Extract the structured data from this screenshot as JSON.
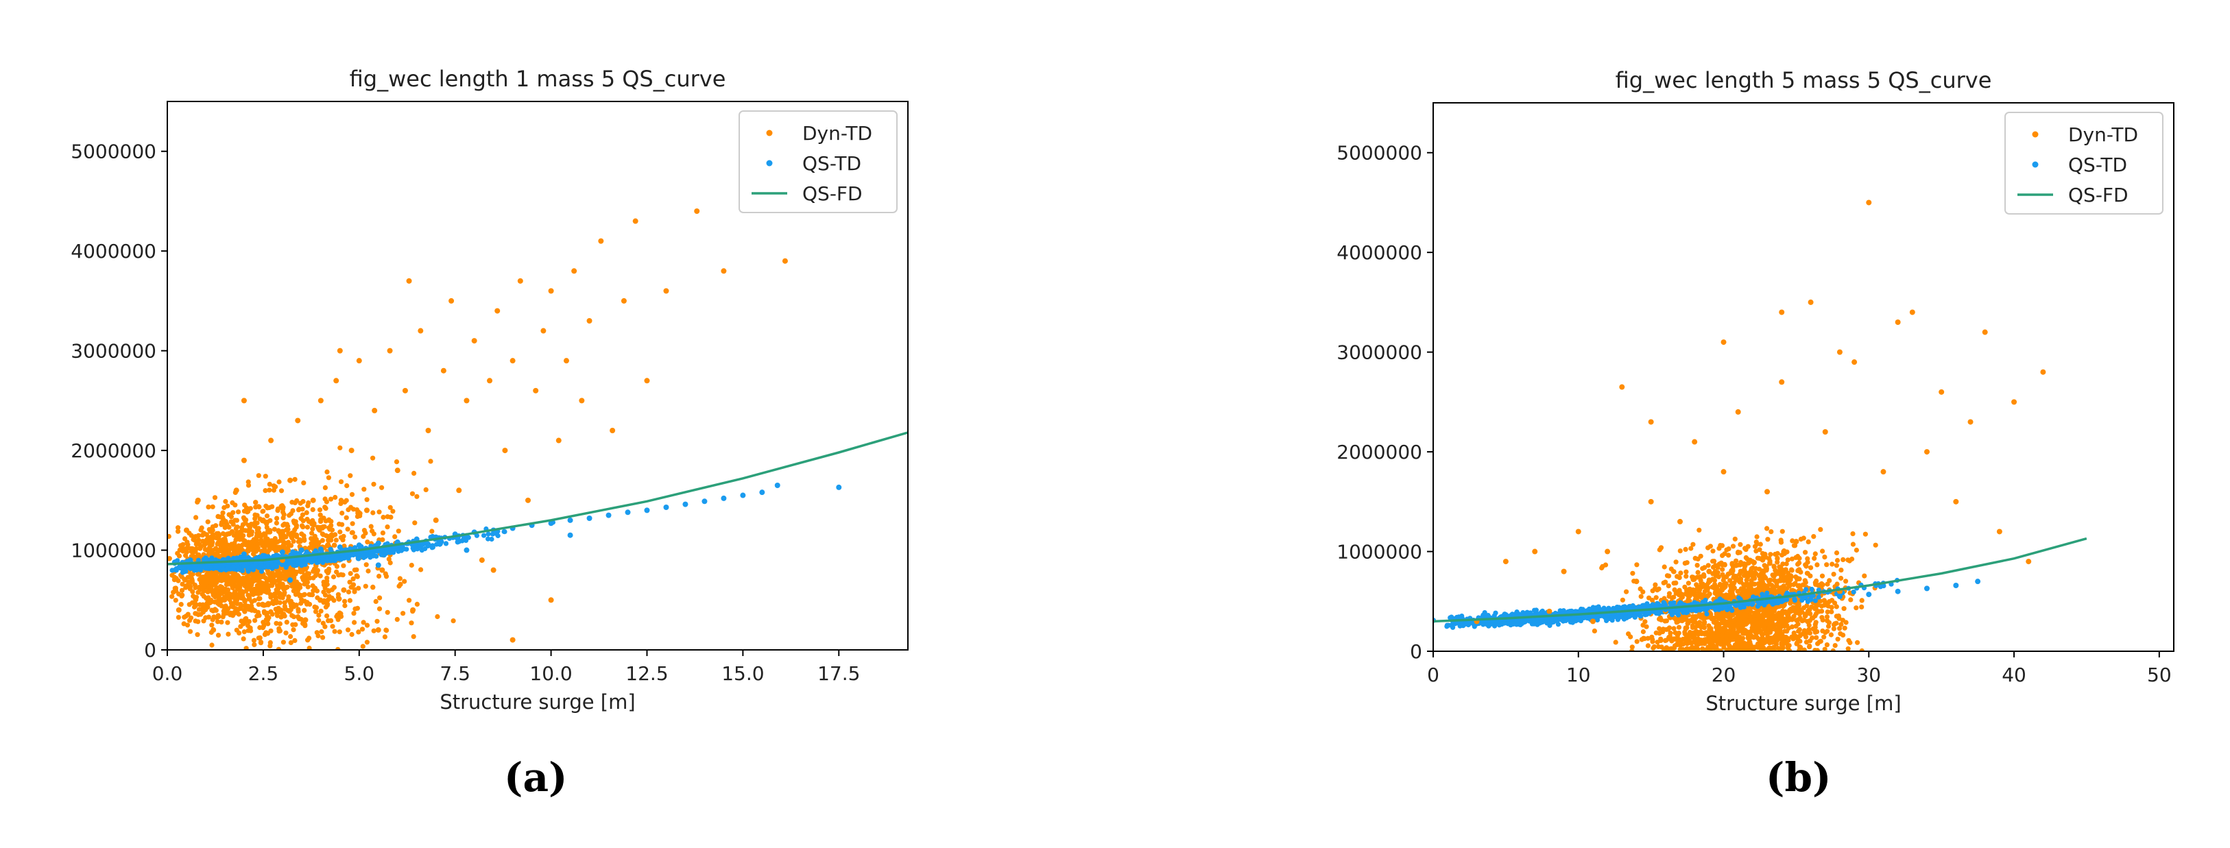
{
  "captions": [
    "(a)",
    "(b)"
  ],
  "chart_data": [
    {
      "type": "scatter",
      "title": "fig_wec length 1 mass 5 QS_curve",
      "xlabel": "Structure surge [m]",
      "ylabel": "",
      "xlim": [
        0,
        19.3
      ],
      "ylim": [
        0,
        5500000
      ],
      "xticks": [
        0.0,
        2.5,
        5.0,
        7.5,
        10.0,
        12.5,
        15.0,
        17.5
      ],
      "xtick_labels": [
        "0.0",
        "2.5",
        "5.0",
        "7.5",
        "10.0",
        "12.5",
        "15.0",
        "17.5"
      ],
      "yticks": [
        0,
        1000000,
        2000000,
        3000000,
        4000000,
        5000000
      ],
      "ytick_labels": [
        "0",
        "1000000",
        "2000000",
        "3000000",
        "4000000",
        "5000000"
      ],
      "grid": false,
      "legend_position": "top-right",
      "series": [
        {
          "name": "Dyn-TD",
          "kind": "scatter",
          "color": "#ff8c00",
          "points": [
            [
              0.3,
              400000
            ],
            [
              0.5,
              1200000
            ],
            [
              0.8,
              1500000
            ],
            [
              1.0,
              700000
            ],
            [
              1.2,
              200000
            ],
            [
              1.5,
              1100000
            ],
            [
              1.8,
              1600000
            ],
            [
              2.0,
              1900000
            ],
            [
              2.2,
              400000
            ],
            [
              2.5,
              1300000
            ],
            [
              2.7,
              2100000
            ],
            [
              3.0,
              900000
            ],
            [
              3.2,
              1700000
            ],
            [
              3.4,
              2300000
            ],
            [
              3.6,
              300000
            ],
            [
              3.8,
              1500000
            ],
            [
              4.0,
              2500000
            ],
            [
              4.2,
              1100000
            ],
            [
              4.4,
              2700000
            ],
            [
              4.6,
              600000
            ],
            [
              4.8,
              2000000
            ],
            [
              5.0,
              2900000
            ],
            [
              5.2,
              1400000
            ],
            [
              5.4,
              2400000
            ],
            [
              5.6,
              800000
            ],
            [
              5.8,
              3000000
            ],
            [
              6.0,
              1800000
            ],
            [
              6.2,
              2600000
            ],
            [
              6.4,
              400000
            ],
            [
              6.6,
              3200000
            ],
            [
              6.8,
              2200000
            ],
            [
              7.0,
              1300000
            ],
            [
              7.2,
              2800000
            ],
            [
              7.4,
              3500000
            ],
            [
              7.6,
              1600000
            ],
            [
              7.8,
              2500000
            ],
            [
              8.0,
              3100000
            ],
            [
              8.2,
              900000
            ],
            [
              8.4,
              2700000
            ],
            [
              8.6,
              3400000
            ],
            [
              8.8,
              2000000
            ],
            [
              9.0,
              2900000
            ],
            [
              9.2,
              3700000
            ],
            [
              9.4,
              1500000
            ],
            [
              9.6,
              2600000
            ],
            [
              9.8,
              3200000
            ],
            [
              10.0,
              3600000
            ],
            [
              10.2,
              2100000
            ],
            [
              10.4,
              2900000
            ],
            [
              10.6,
              3800000
            ],
            [
              10.8,
              2500000
            ],
            [
              11.0,
              3300000
            ],
            [
              11.3,
              4100000
            ],
            [
              11.6,
              2200000
            ],
            [
              11.9,
              3500000
            ],
            [
              12.2,
              4300000
            ],
            [
              12.5,
              2700000
            ],
            [
              13.0,
              3600000
            ],
            [
              13.8,
              4400000
            ],
            [
              14.5,
              3800000
            ],
            [
              16.1,
              3900000
            ],
            [
              4.5,
              3000000
            ],
            [
              6.3,
              3700000
            ],
            [
              2.0,
              2500000
            ],
            [
              5.5,
              200000
            ],
            [
              9.0,
              100000
            ],
            [
              10.0,
              500000
            ],
            [
              8.5,
              800000
            ]
          ]
        },
        {
          "name": "QS-TD",
          "kind": "scatter",
          "color": "#1a9bef",
          "points": [
            [
              0.2,
              880000
            ],
            [
              0.6,
              900000
            ],
            [
              1.0,
              920000
            ],
            [
              1.5,
              900000
            ],
            [
              2.0,
              960000
            ],
            [
              2.5,
              940000
            ],
            [
              3.0,
              980000
            ],
            [
              3.5,
              1000000
            ],
            [
              4.0,
              1010000
            ],
            [
              4.5,
              1030000
            ],
            [
              5.0,
              1050000
            ],
            [
              5.5,
              1070000
            ],
            [
              6.0,
              1080000
            ],
            [
              6.5,
              1110000
            ],
            [
              7.0,
              1130000
            ],
            [
              7.5,
              1160000
            ],
            [
              8.0,
              1180000
            ],
            [
              8.5,
              1200000
            ],
            [
              9.0,
              1220000
            ],
            [
              9.5,
              1250000
            ],
            [
              10.0,
              1270000
            ],
            [
              10.5,
              1300000
            ],
            [
              11.0,
              1320000
            ],
            [
              11.5,
              1350000
            ],
            [
              12.0,
              1380000
            ],
            [
              12.5,
              1400000
            ],
            [
              13.0,
              1430000
            ],
            [
              13.5,
              1460000
            ],
            [
              14.0,
              1490000
            ],
            [
              14.5,
              1520000
            ],
            [
              15.0,
              1550000
            ],
            [
              15.5,
              1580000
            ],
            [
              15.9,
              1650000
            ],
            [
              17.5,
              1630000
            ],
            [
              3.2,
              700000
            ],
            [
              5.5,
              850000
            ],
            [
              7.8,
              1000000
            ],
            [
              10.5,
              1150000
            ]
          ]
        },
        {
          "name": "QS-FD",
          "kind": "line",
          "color": "#2ca07a",
          "points": [
            [
              0,
              860000
            ],
            [
              2.5,
              900000
            ],
            [
              5.0,
              1000000
            ],
            [
              7.5,
              1140000
            ],
            [
              10.0,
              1300000
            ],
            [
              12.5,
              1490000
            ],
            [
              15.0,
              1720000
            ],
            [
              17.5,
              1980000
            ],
            [
              19.3,
              2180000
            ]
          ]
        }
      ]
    },
    {
      "type": "scatter",
      "title": "fig_wec length 5 mass 5 QS_curve",
      "xlabel": "Structure surge [m]",
      "ylabel": "",
      "xlim": [
        0,
        51
      ],
      "ylim": [
        0,
        5500000
      ],
      "xticks": [
        0,
        10,
        20,
        30,
        40,
        50
      ],
      "xtick_labels": [
        "0",
        "10",
        "20",
        "30",
        "40",
        "50"
      ],
      "yticks": [
        0,
        1000000,
        2000000,
        3000000,
        4000000,
        5000000
      ],
      "ytick_labels": [
        "0",
        "1000000",
        "2000000",
        "3000000",
        "4000000",
        "5000000"
      ],
      "grid": false,
      "legend_position": "top-right",
      "series": [
        {
          "name": "Dyn-TD",
          "kind": "scatter",
          "color": "#ff8c00",
          "points": [
            [
              3,
              300000
            ],
            [
              5,
              900000
            ],
            [
              7,
              1000000
            ],
            [
              8,
              400000
            ],
            [
              9,
              800000
            ],
            [
              10,
              1200000
            ],
            [
              11,
              300000
            ],
            [
              12,
              1000000
            ],
            [
              13,
              2650000
            ],
            [
              14,
              700000
            ],
            [
              15,
              1500000
            ],
            [
              16,
              400000
            ],
            [
              17,
              1300000
            ],
            [
              18,
              2100000
            ],
            [
              19,
              800000
            ],
            [
              20,
              1800000
            ],
            [
              21,
              2400000
            ],
            [
              22,
              500000
            ],
            [
              23,
              1600000
            ],
            [
              24,
              2700000
            ],
            [
              25,
              1100000
            ],
            [
              26,
              3500000
            ],
            [
              27,
              2200000
            ],
            [
              28,
              600000
            ],
            [
              29,
              2900000
            ],
            [
              30,
              4500000
            ],
            [
              31,
              1800000
            ],
            [
              32,
              3300000
            ],
            [
              33,
              3400000
            ],
            [
              34,
              2000000
            ],
            [
              35,
              2600000
            ],
            [
              36,
              1500000
            ],
            [
              37,
              2300000
            ],
            [
              38,
              3200000
            ],
            [
              39,
              1200000
            ],
            [
              40,
              2500000
            ],
            [
              41,
              900000
            ],
            [
              42,
              2800000
            ],
            [
              24,
              3400000
            ],
            [
              28,
              3000000
            ],
            [
              15,
              2300000
            ],
            [
              20,
              3100000
            ]
          ]
        },
        {
          "name": "QS-TD",
          "kind": "scatter",
          "color": "#1a9bef",
          "points": [
            [
              0,
              310000
            ],
            [
              2,
              320000
            ],
            [
              4,
              330000
            ],
            [
              6,
              340000
            ],
            [
              8,
              350000
            ],
            [
              10,
              360000
            ],
            [
              12,
              380000
            ],
            [
              14,
              400000
            ],
            [
              16,
              420000
            ],
            [
              18,
              440000
            ],
            [
              20,
              460000
            ],
            [
              22,
              480000
            ],
            [
              24,
              500000
            ],
            [
              26,
              520000
            ],
            [
              28,
              550000
            ],
            [
              30,
              570000
            ],
            [
              32,
              600000
            ],
            [
              34,
              630000
            ],
            [
              36,
              660000
            ],
            [
              37.5,
              700000
            ]
          ]
        },
        {
          "name": "QS-FD",
          "kind": "line",
          "color": "#2ca07a",
          "points": [
            [
              0,
              300000
            ],
            [
              5,
              330000
            ],
            [
              10,
              370000
            ],
            [
              15,
              420000
            ],
            [
              20,
              480000
            ],
            [
              25,
              560000
            ],
            [
              30,
              660000
            ],
            [
              35,
              780000
            ],
            [
              40,
              930000
            ],
            [
              45,
              1130000
            ]
          ]
        }
      ]
    }
  ]
}
